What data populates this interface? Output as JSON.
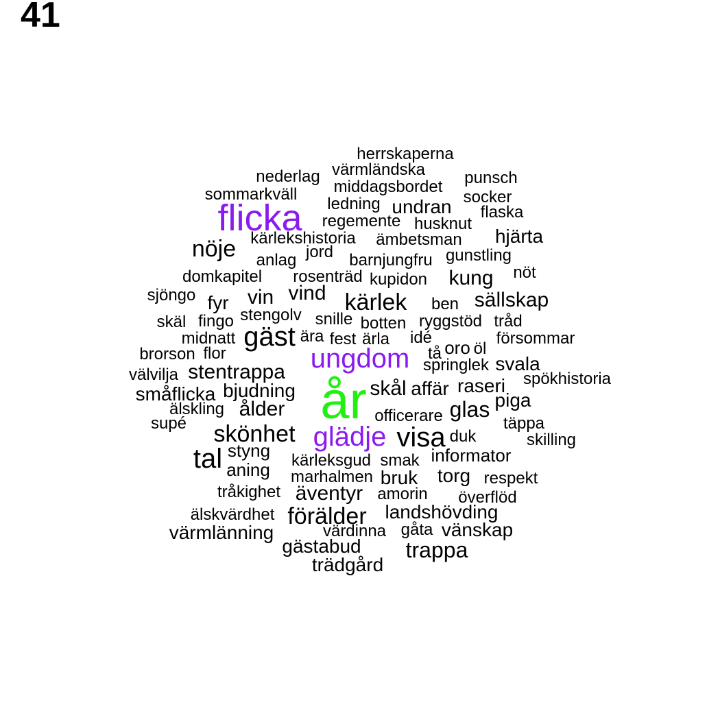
{
  "page": {
    "number": "41"
  },
  "colors": {
    "default": "#000000",
    "purple": "#8a1bf0",
    "green": "#22f012"
  },
  "words": [
    {
      "text": "herrskaperna"
    },
    {
      "text": "värmländska"
    },
    {
      "text": "nederlag"
    },
    {
      "text": "punsch"
    },
    {
      "text": "middagsbordet"
    },
    {
      "text": "sommarkväll"
    },
    {
      "text": "socker"
    },
    {
      "text": "ledning"
    },
    {
      "text": "undran"
    },
    {
      "text": "flicka",
      "color": "purple"
    },
    {
      "text": "flaska"
    },
    {
      "text": "regemente"
    },
    {
      "text": "husknut"
    },
    {
      "text": "hjärta"
    },
    {
      "text": "kärlekshistoria"
    },
    {
      "text": "ämbetsman"
    },
    {
      "text": "nöje"
    },
    {
      "text": "jord"
    },
    {
      "text": "gunstling"
    },
    {
      "text": "anlag"
    },
    {
      "text": "barnjungfru"
    },
    {
      "text": "nöt"
    },
    {
      "text": "domkapitel"
    },
    {
      "text": "rosenträd"
    },
    {
      "text": "kupidon"
    },
    {
      "text": "kung"
    },
    {
      "text": "vind"
    },
    {
      "text": "sjöngo"
    },
    {
      "text": "vin"
    },
    {
      "text": "kärlek"
    },
    {
      "text": "sällskap"
    },
    {
      "text": "fyr"
    },
    {
      "text": "ben"
    },
    {
      "text": "stengolv"
    },
    {
      "text": "skäl"
    },
    {
      "text": "fingo"
    },
    {
      "text": "snille"
    },
    {
      "text": "ryggstöd"
    },
    {
      "text": "tråd"
    },
    {
      "text": "botten"
    },
    {
      "text": "gäst"
    },
    {
      "text": "midnatt"
    },
    {
      "text": "ära"
    },
    {
      "text": "fest"
    },
    {
      "text": "ärla"
    },
    {
      "text": "idé"
    },
    {
      "text": "försommar"
    },
    {
      "text": "oro"
    },
    {
      "text": "öl"
    },
    {
      "text": "brorson"
    },
    {
      "text": "flor"
    },
    {
      "text": "tå"
    },
    {
      "text": "ungdom",
      "color": "purple"
    },
    {
      "text": "springlek"
    },
    {
      "text": "svala"
    },
    {
      "text": "stentrappa"
    },
    {
      "text": "välvilja"
    },
    {
      "text": "spökhistoria"
    },
    {
      "text": "bjudning"
    },
    {
      "text": "skål"
    },
    {
      "text": "affär"
    },
    {
      "text": "raseri"
    },
    {
      "text": "småflicka"
    },
    {
      "text": "år",
      "color": "green"
    },
    {
      "text": "piga"
    },
    {
      "text": "älskling"
    },
    {
      "text": "ålder"
    },
    {
      "text": "glas"
    },
    {
      "text": "officerare"
    },
    {
      "text": "täppa"
    },
    {
      "text": "supé"
    },
    {
      "text": "skönhet"
    },
    {
      "text": "glädje",
      "color": "purple"
    },
    {
      "text": "visa"
    },
    {
      "text": "duk"
    },
    {
      "text": "skilling"
    },
    {
      "text": "styng"
    },
    {
      "text": "informator"
    },
    {
      "text": "tal"
    },
    {
      "text": "kärleksgud"
    },
    {
      "text": "smak"
    },
    {
      "text": "aning"
    },
    {
      "text": "torg"
    },
    {
      "text": "marhalmen"
    },
    {
      "text": "bruk"
    },
    {
      "text": "respekt"
    },
    {
      "text": "äventyr"
    },
    {
      "text": "tråkighet"
    },
    {
      "text": "amorin"
    },
    {
      "text": "överflöd"
    },
    {
      "text": "landshövding"
    },
    {
      "text": "älskvärdhet"
    },
    {
      "text": "förälder"
    },
    {
      "text": "gåta"
    },
    {
      "text": "värmlänning"
    },
    {
      "text": "värdinna"
    },
    {
      "text": "vänskap"
    },
    {
      "text": "gästabud"
    },
    {
      "text": "trappa"
    },
    {
      "text": "trädgård"
    }
  ]
}
